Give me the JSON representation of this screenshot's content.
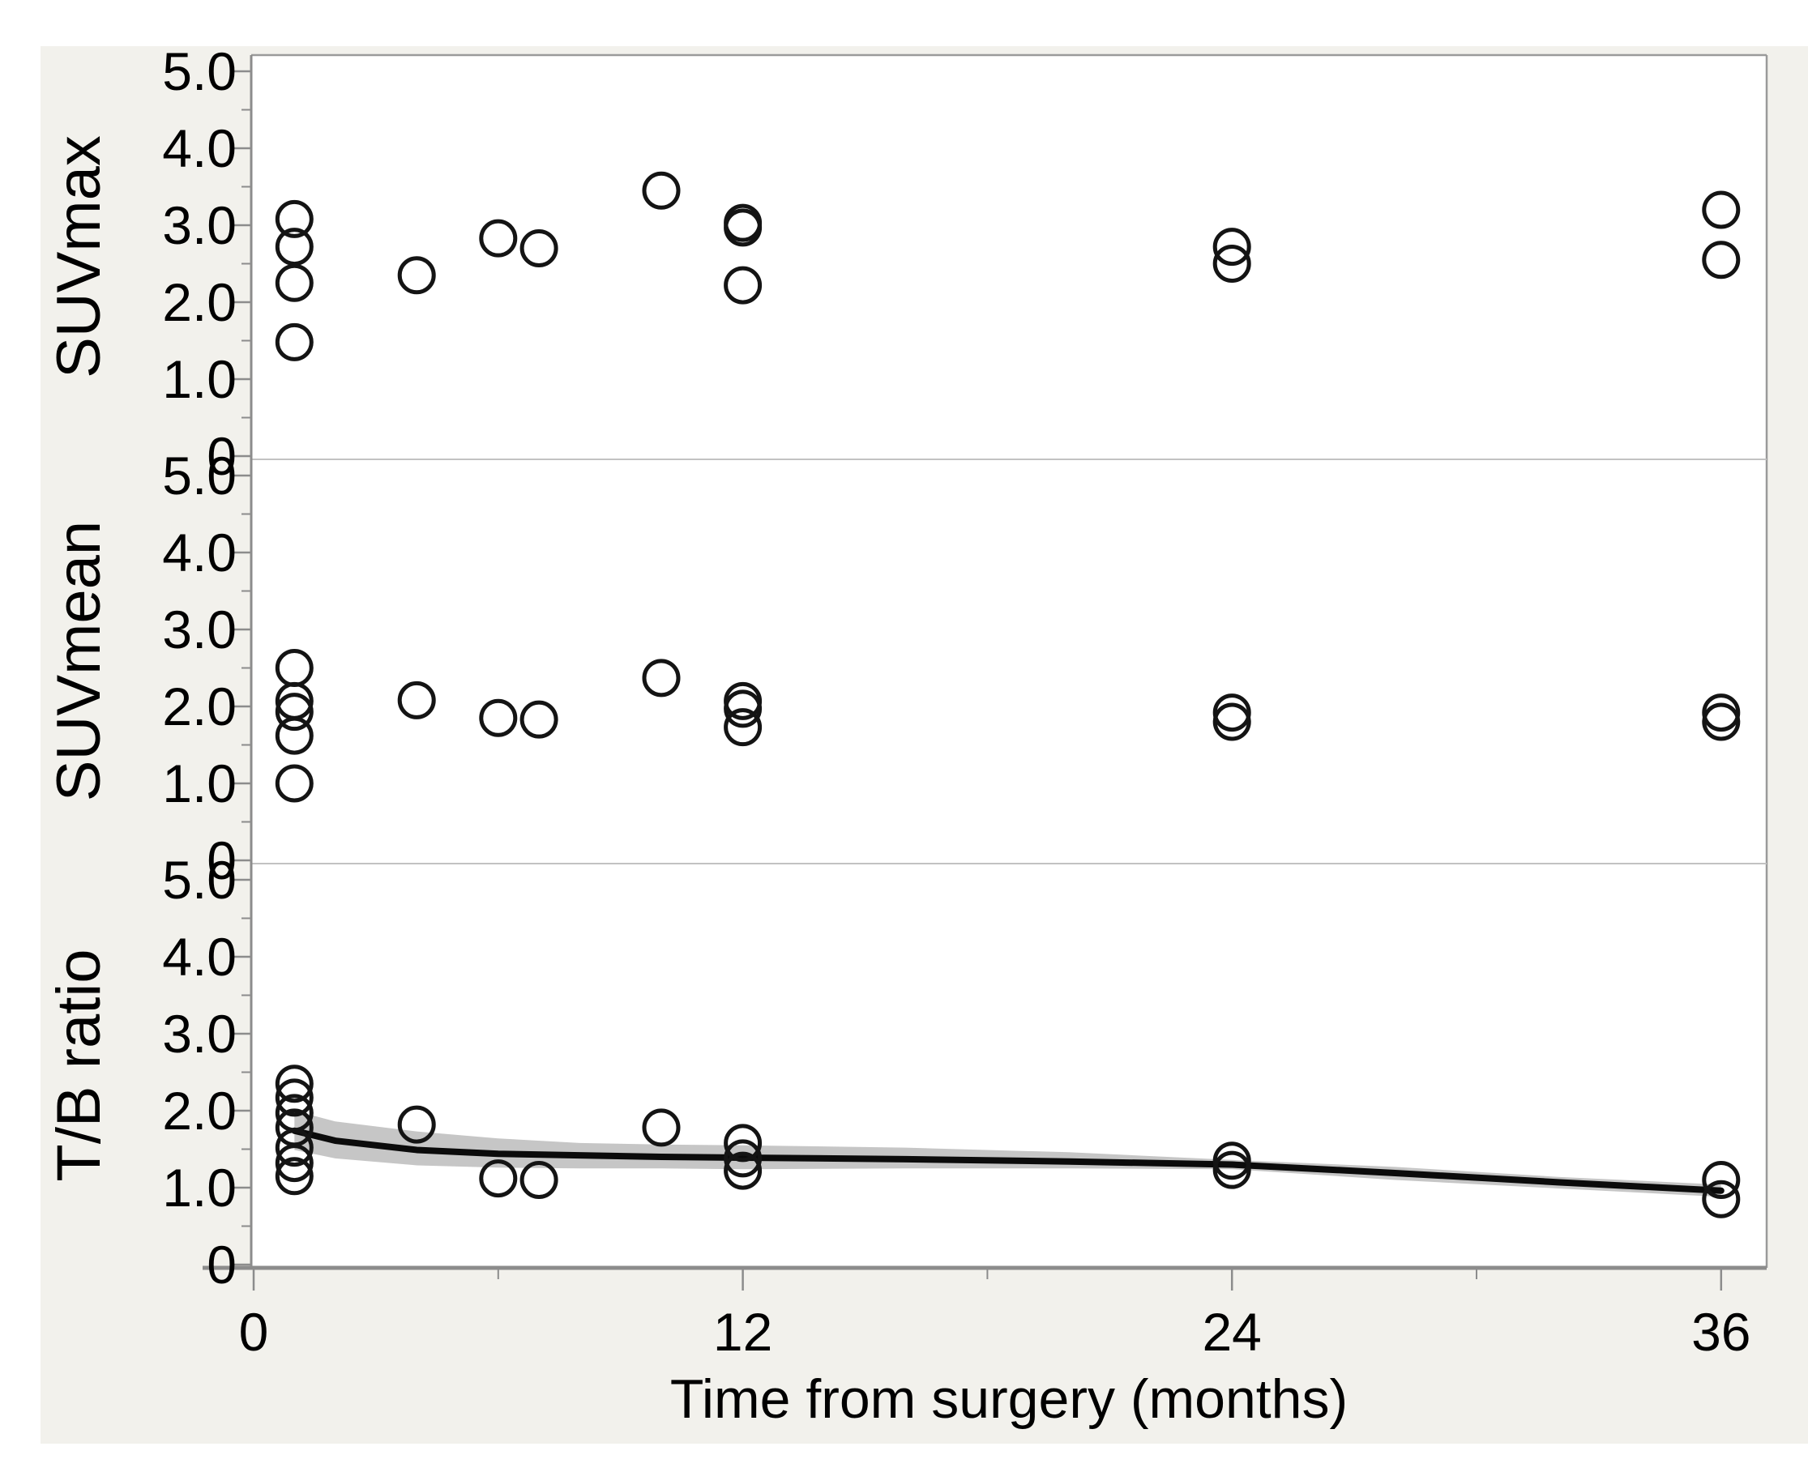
{
  "figure": {
    "background_color": "#f2f1ec",
    "plot_background_color": "#ffffff",
    "frame_color": "#9a9a9a",
    "axis_color": "#8c8c8c",
    "divider_color": "#c2c2c2",
    "marker_color": "#141414",
    "fit_line_color": "#0b0b0b",
    "band_color": "#bcbcbc",
    "x_axis": {
      "title": "Time from surgery (months)",
      "major_tick_values": [
        0,
        12,
        24,
        36
      ],
      "major_tick_labels": [
        "0",
        "12",
        "24",
        "36"
      ],
      "minor_tick_values": [
        6,
        18,
        30
      ],
      "range": [
        0,
        37.2
      ]
    },
    "y_axis": {
      "tick_labels": [
        "5.0",
        "4.0",
        "3.0",
        "2.0",
        "1.0",
        "0"
      ],
      "major_tick_values": [
        5,
        4,
        3,
        2,
        1,
        0
      ],
      "minor_tick_values": [
        4.5,
        3.5,
        2.5,
        1.5,
        0.5
      ],
      "range": [
        0,
        5.25
      ]
    }
  },
  "chart_data": [
    {
      "type": "scatter",
      "ylabel": "SUVmax",
      "xlabel": "Time from surgery (months)",
      "xlim": [
        0,
        37.2
      ],
      "ylim": [
        0,
        5.25
      ],
      "x_ticks": [
        0,
        12,
        24,
        36
      ],
      "y_ticks": [
        0,
        1,
        2,
        3,
        4,
        5
      ],
      "grid": false,
      "marker": "open-circle",
      "points": [
        [
          1,
          3.08
        ],
        [
          1,
          2.72
        ],
        [
          1,
          2.25
        ],
        [
          1,
          1.48
        ],
        [
          4,
          2.35
        ],
        [
          6,
          2.83
        ],
        [
          7,
          2.7
        ],
        [
          10,
          3.45
        ],
        [
          12,
          3.03
        ],
        [
          12,
          2.97
        ],
        [
          12,
          2.22
        ],
        [
          24,
          2.72
        ],
        [
          24,
          2.5
        ],
        [
          36,
          3.2
        ],
        [
          36,
          2.55
        ]
      ]
    },
    {
      "type": "scatter",
      "ylabel": "SUVmean",
      "xlabel": "Time from surgery (months)",
      "xlim": [
        0,
        37.2
      ],
      "ylim": [
        0,
        5.25
      ],
      "x_ticks": [
        0,
        12,
        24,
        36
      ],
      "y_ticks": [
        0,
        1,
        2,
        3,
        4,
        5
      ],
      "grid": false,
      "marker": "open-circle",
      "points": [
        [
          1,
          2.5
        ],
        [
          1,
          2.07
        ],
        [
          1,
          1.93
        ],
        [
          1,
          1.62
        ],
        [
          1,
          1.0
        ],
        [
          4,
          2.08
        ],
        [
          6,
          1.85
        ],
        [
          7,
          1.83
        ],
        [
          10,
          2.37
        ],
        [
          12,
          2.07
        ],
        [
          12,
          1.97
        ],
        [
          12,
          1.73
        ],
        [
          24,
          1.92
        ],
        [
          24,
          1.8
        ],
        [
          36,
          1.92
        ],
        [
          36,
          1.8
        ]
      ]
    },
    {
      "type": "scatter",
      "ylabel": "T/B ratio",
      "xlabel": "Time from surgery (months)",
      "xlim": [
        0,
        37.2
      ],
      "ylim": [
        0,
        5.25
      ],
      "x_ticks": [
        0,
        12,
        24,
        36
      ],
      "y_ticks": [
        0,
        1,
        2,
        3,
        4,
        5
      ],
      "grid": false,
      "marker": "open-circle",
      "points": [
        [
          1,
          2.35
        ],
        [
          1,
          2.17
        ],
        [
          1,
          1.97
        ],
        [
          1,
          1.78
        ],
        [
          1,
          1.52
        ],
        [
          1,
          1.32
        ],
        [
          1,
          1.15
        ],
        [
          4,
          1.82
        ],
        [
          6,
          1.12
        ],
        [
          7,
          1.1
        ],
        [
          10,
          1.78
        ],
        [
          12,
          1.58
        ],
        [
          12,
          1.38
        ],
        [
          12,
          1.22
        ],
        [
          24,
          1.35
        ],
        [
          24,
          1.23
        ],
        [
          36,
          1.1
        ],
        [
          36,
          0.85
        ]
      ],
      "fit_line": [
        [
          1,
          1.74
        ],
        [
          2,
          1.61
        ],
        [
          4,
          1.49
        ],
        [
          6,
          1.44
        ],
        [
          8,
          1.42
        ],
        [
          10,
          1.4
        ],
        [
          12,
          1.39
        ],
        [
          16,
          1.37
        ],
        [
          20,
          1.34
        ],
        [
          24,
          1.3
        ],
        [
          28,
          1.19
        ],
        [
          32,
          1.07
        ],
        [
          36,
          0.96
        ]
      ],
      "ci_upper": [
        [
          1,
          2.0
        ],
        [
          2,
          1.86
        ],
        [
          4,
          1.73
        ],
        [
          6,
          1.64
        ],
        [
          8,
          1.58
        ],
        [
          10,
          1.56
        ],
        [
          12,
          1.55
        ],
        [
          16,
          1.52
        ],
        [
          20,
          1.46
        ],
        [
          24,
          1.36
        ],
        [
          28,
          1.27
        ],
        [
          32,
          1.14
        ],
        [
          36,
          1.04
        ]
      ],
      "ci_lower": [
        [
          1,
          1.49
        ],
        [
          2,
          1.38
        ],
        [
          4,
          1.29
        ],
        [
          6,
          1.26
        ],
        [
          8,
          1.25
        ],
        [
          10,
          1.25
        ],
        [
          12,
          1.24
        ],
        [
          16,
          1.25
        ],
        [
          20,
          1.25
        ],
        [
          24,
          1.24
        ],
        [
          28,
          1.1
        ],
        [
          32,
          0.99
        ],
        [
          36,
          0.88
        ]
      ]
    }
  ]
}
